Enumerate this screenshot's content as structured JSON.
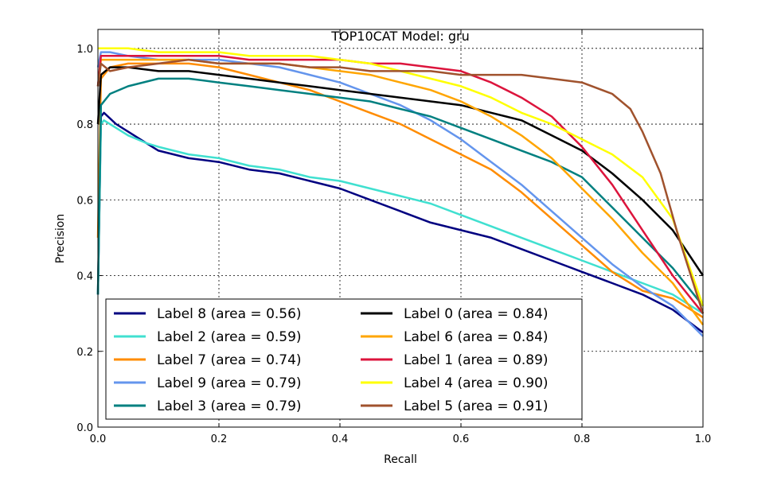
{
  "chart_data": {
    "type": "line",
    "title": "TOP10CAT Model: gru",
    "xlabel": "Recall",
    "ylabel": "Precision",
    "xlim": [
      0.0,
      1.0
    ],
    "ylim": [
      0.0,
      1.05
    ],
    "xticks": [
      "0.0",
      "0.2",
      "0.4",
      "0.6",
      "0.8",
      "1.0"
    ],
    "yticks": [
      "0.0",
      "0.2",
      "0.4",
      "0.6",
      "0.8",
      "1.0"
    ],
    "grid": true,
    "legend_position": "lower-left",
    "series": [
      {
        "name": "Label 8 (area = 0.56)",
        "color": "#000080",
        "x": [
          0.0,
          0.005,
          0.01,
          0.03,
          0.05,
          0.08,
          0.1,
          0.15,
          0.2,
          0.25,
          0.3,
          0.35,
          0.4,
          0.45,
          0.5,
          0.55,
          0.6,
          0.65,
          0.7,
          0.75,
          0.8,
          0.85,
          0.9,
          0.95,
          1.0
        ],
        "y": [
          0.35,
          0.82,
          0.83,
          0.8,
          0.78,
          0.75,
          0.73,
          0.71,
          0.7,
          0.68,
          0.67,
          0.65,
          0.63,
          0.6,
          0.57,
          0.54,
          0.52,
          0.5,
          0.47,
          0.44,
          0.41,
          0.38,
          0.35,
          0.31,
          0.25
        ]
      },
      {
        "name": "Label 2 (area = 0.59)",
        "color": "#40E0D0",
        "x": [
          0.0,
          0.005,
          0.01,
          0.03,
          0.05,
          0.08,
          0.1,
          0.15,
          0.2,
          0.25,
          0.3,
          0.35,
          0.4,
          0.45,
          0.5,
          0.55,
          0.6,
          0.65,
          0.7,
          0.75,
          0.8,
          0.85,
          0.9,
          0.95,
          1.0
        ],
        "y": [
          0.35,
          0.8,
          0.81,
          0.79,
          0.77,
          0.75,
          0.74,
          0.72,
          0.71,
          0.69,
          0.68,
          0.66,
          0.65,
          0.63,
          0.61,
          0.59,
          0.56,
          0.53,
          0.5,
          0.47,
          0.44,
          0.41,
          0.38,
          0.35,
          0.3
        ]
      },
      {
        "name": "Label 7 (area = 0.74)",
        "color": "#FF8C00",
        "x": [
          0.0,
          0.005,
          0.02,
          0.05,
          0.1,
          0.15,
          0.2,
          0.25,
          0.3,
          0.35,
          0.4,
          0.45,
          0.5,
          0.55,
          0.6,
          0.65,
          0.7,
          0.75,
          0.8,
          0.85,
          0.9,
          0.95,
          1.0
        ],
        "y": [
          0.5,
          0.92,
          0.95,
          0.96,
          0.96,
          0.96,
          0.95,
          0.93,
          0.91,
          0.89,
          0.86,
          0.83,
          0.8,
          0.76,
          0.72,
          0.68,
          0.62,
          0.55,
          0.48,
          0.41,
          0.36,
          0.34,
          0.29
        ]
      },
      {
        "name": "Label 9 (area = 0.79)",
        "color": "#6495ED",
        "x": [
          0.0,
          0.005,
          0.02,
          0.05,
          0.1,
          0.15,
          0.2,
          0.25,
          0.3,
          0.35,
          0.4,
          0.45,
          0.5,
          0.55,
          0.6,
          0.65,
          0.7,
          0.75,
          0.8,
          0.85,
          0.9,
          0.95,
          1.0
        ],
        "y": [
          0.95,
          0.99,
          0.99,
          0.98,
          0.97,
          0.97,
          0.97,
          0.96,
          0.95,
          0.93,
          0.91,
          0.88,
          0.85,
          0.81,
          0.76,
          0.7,
          0.64,
          0.57,
          0.5,
          0.43,
          0.37,
          0.32,
          0.24
        ]
      },
      {
        "name": "Label 3 (area = 0.79)",
        "color": "#008080",
        "x": [
          0.0,
          0.005,
          0.02,
          0.05,
          0.1,
          0.15,
          0.2,
          0.25,
          0.3,
          0.35,
          0.4,
          0.45,
          0.5,
          0.55,
          0.6,
          0.65,
          0.7,
          0.75,
          0.8,
          0.85,
          0.9,
          0.95,
          1.0
        ],
        "y": [
          0.35,
          0.85,
          0.88,
          0.9,
          0.92,
          0.92,
          0.91,
          0.9,
          0.89,
          0.88,
          0.87,
          0.86,
          0.84,
          0.82,
          0.79,
          0.76,
          0.73,
          0.7,
          0.66,
          0.58,
          0.5,
          0.42,
          0.32
        ]
      },
      {
        "name": "Label 0 (area = 0.84)",
        "color": "#000000",
        "x": [
          0.0,
          0.005,
          0.02,
          0.05,
          0.1,
          0.15,
          0.2,
          0.25,
          0.3,
          0.35,
          0.4,
          0.45,
          0.5,
          0.55,
          0.6,
          0.65,
          0.7,
          0.75,
          0.8,
          0.85,
          0.9,
          0.95,
          1.0
        ],
        "y": [
          0.8,
          0.93,
          0.95,
          0.95,
          0.94,
          0.94,
          0.93,
          0.92,
          0.91,
          0.9,
          0.89,
          0.88,
          0.87,
          0.86,
          0.85,
          0.83,
          0.81,
          0.77,
          0.73,
          0.67,
          0.6,
          0.52,
          0.4
        ]
      },
      {
        "name": "Label 6 (area = 0.84)",
        "color": "#FFA500",
        "x": [
          0.0,
          0.005,
          0.02,
          0.05,
          0.1,
          0.15,
          0.2,
          0.25,
          0.3,
          0.35,
          0.4,
          0.45,
          0.5,
          0.55,
          0.6,
          0.65,
          0.7,
          0.75,
          0.8,
          0.85,
          0.9,
          0.95,
          1.0
        ],
        "y": [
          0.9,
          0.97,
          0.97,
          0.97,
          0.97,
          0.97,
          0.96,
          0.96,
          0.96,
          0.95,
          0.94,
          0.93,
          0.91,
          0.89,
          0.86,
          0.82,
          0.77,
          0.71,
          0.63,
          0.55,
          0.46,
          0.38,
          0.27
        ]
      },
      {
        "name": "Label 1 (area = 0.89)",
        "color": "#DC143C",
        "x": [
          0.0,
          0.005,
          0.02,
          0.05,
          0.1,
          0.15,
          0.2,
          0.25,
          0.3,
          0.35,
          0.4,
          0.45,
          0.5,
          0.55,
          0.6,
          0.65,
          0.7,
          0.75,
          0.8,
          0.85,
          0.9,
          0.95,
          1.0
        ],
        "y": [
          0.9,
          0.98,
          0.98,
          0.98,
          0.98,
          0.98,
          0.98,
          0.97,
          0.97,
          0.97,
          0.97,
          0.96,
          0.96,
          0.95,
          0.94,
          0.91,
          0.87,
          0.82,
          0.74,
          0.64,
          0.52,
          0.4,
          0.3
        ]
      },
      {
        "name": "Label 4 (area = 0.90)",
        "color": "#FFFF00",
        "x": [
          0.0,
          0.005,
          0.02,
          0.05,
          0.1,
          0.15,
          0.2,
          0.25,
          0.3,
          0.35,
          0.4,
          0.45,
          0.5,
          0.55,
          0.6,
          0.65,
          0.7,
          0.75,
          0.8,
          0.85,
          0.9,
          0.95,
          1.0
        ],
        "y": [
          1.0,
          1.0,
          1.0,
          1.0,
          0.99,
          0.99,
          0.99,
          0.98,
          0.98,
          0.98,
          0.97,
          0.96,
          0.94,
          0.92,
          0.9,
          0.87,
          0.83,
          0.8,
          0.76,
          0.72,
          0.66,
          0.55,
          0.32
        ]
      },
      {
        "name": "Label 5 (area = 0.91)",
        "color": "#A0522D",
        "x": [
          0.0,
          0.005,
          0.02,
          0.05,
          0.1,
          0.15,
          0.2,
          0.25,
          0.3,
          0.35,
          0.4,
          0.45,
          0.5,
          0.55,
          0.6,
          0.65,
          0.7,
          0.75,
          0.8,
          0.85,
          0.88,
          0.9,
          0.93,
          0.96,
          1.0
        ],
        "y": [
          0.9,
          0.96,
          0.94,
          0.95,
          0.96,
          0.97,
          0.96,
          0.96,
          0.96,
          0.95,
          0.95,
          0.94,
          0.94,
          0.94,
          0.93,
          0.93,
          0.93,
          0.92,
          0.91,
          0.88,
          0.84,
          0.78,
          0.67,
          0.5,
          0.3
        ]
      }
    ]
  }
}
